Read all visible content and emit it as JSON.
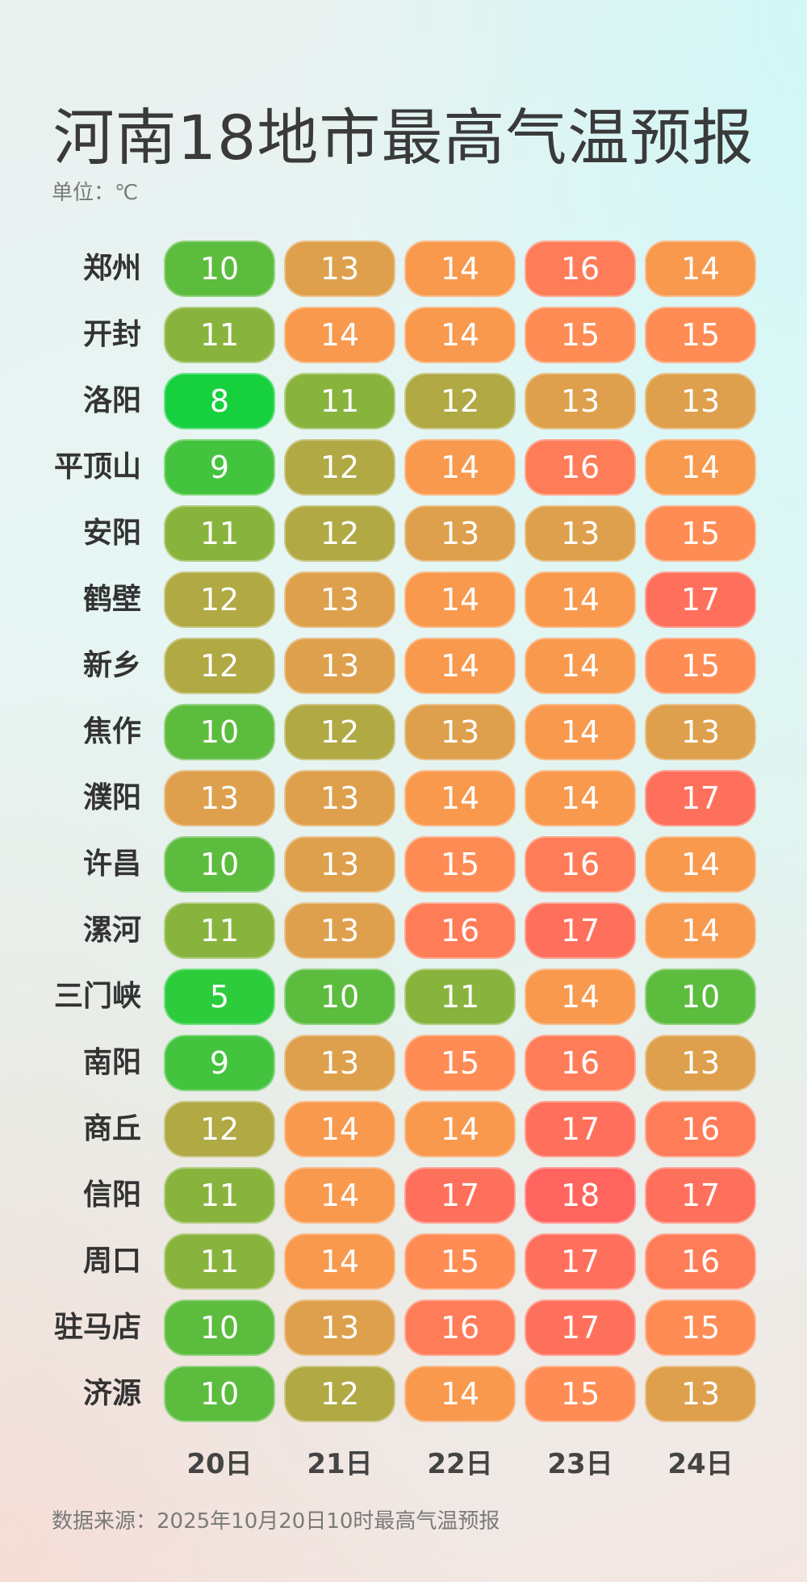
{
  "header": {
    "title": "河南18地市最高气温预报",
    "unit": "单位：℃"
  },
  "footer": {
    "source": "数据来源：2025年10月20日10时最高气温预报"
  },
  "chart_data": {
    "type": "heatmap",
    "title": "河南18地市最高气温预报",
    "unit": "℃",
    "columns": [
      "20日",
      "21日",
      "22日",
      "23日",
      "24日"
    ],
    "rows": [
      {
        "city": "郑州",
        "values": [
          10,
          13,
          14,
          16,
          14
        ]
      },
      {
        "city": "开封",
        "values": [
          11,
          14,
          14,
          15,
          15
        ]
      },
      {
        "city": "洛阳",
        "values": [
          8,
          11,
          12,
          13,
          13
        ]
      },
      {
        "city": "平顶山",
        "values": [
          9,
          12,
          14,
          16,
          14
        ]
      },
      {
        "city": "安阳",
        "values": [
          11,
          12,
          13,
          13,
          15
        ]
      },
      {
        "city": "鹤壁",
        "values": [
          12,
          13,
          14,
          14,
          17
        ]
      },
      {
        "city": "新乡",
        "values": [
          12,
          13,
          14,
          14,
          15
        ]
      },
      {
        "city": "焦作",
        "values": [
          10,
          12,
          13,
          14,
          13
        ]
      },
      {
        "city": "濮阳",
        "values": [
          13,
          13,
          14,
          14,
          17
        ]
      },
      {
        "city": "许昌",
        "values": [
          10,
          13,
          15,
          16,
          14
        ]
      },
      {
        "city": "漯河",
        "values": [
          11,
          13,
          16,
          17,
          14
        ]
      },
      {
        "city": "三门峡",
        "values": [
          5,
          10,
          11,
          14,
          10
        ]
      },
      {
        "city": "南阳",
        "values": [
          9,
          13,
          15,
          16,
          13
        ]
      },
      {
        "city": "商丘",
        "values": [
          12,
          14,
          14,
          17,
          16
        ]
      },
      {
        "city": "信阳",
        "values": [
          11,
          14,
          17,
          18,
          17
        ]
      },
      {
        "city": "周口",
        "values": [
          11,
          14,
          15,
          17,
          16
        ]
      },
      {
        "city": "驻马店",
        "values": [
          10,
          13,
          16,
          17,
          15
        ]
      },
      {
        "city": "济源",
        "values": [
          10,
          12,
          14,
          15,
          13
        ]
      }
    ],
    "color_scale": {
      "5": "#2ccc3c",
      "8": "#16d03e",
      "9": "#44c43e",
      "10": "#5cbc3e",
      "11": "#88b43e",
      "12": "#b0a944",
      "13": "#dea04c",
      "14": "#f8994e",
      "15": "#fe8c54",
      "16": "#ff7c58",
      "17": "#ff705c",
      "18": "#ff645e"
    }
  }
}
